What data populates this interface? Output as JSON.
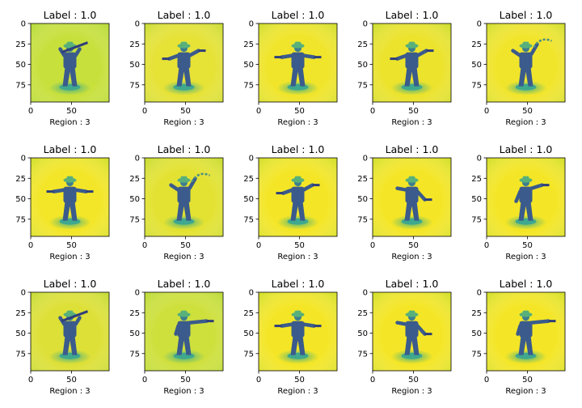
{
  "chart_data": {
    "type": "image_grid",
    "rows": 3,
    "cols": 5,
    "image_size": [
      96,
      96
    ],
    "xticks": [
      0,
      50
    ],
    "yticks": [
      0,
      25,
      50,
      75
    ],
    "panels": [
      {
        "title": "Label : 1.0",
        "xlabel": "Region : 3",
        "background": "#c8e03c",
        "pose": "rifle"
      },
      {
        "title": "Label : 1.0",
        "xlabel": "Region : 3",
        "background": "#e6e236",
        "pose": "two-guns"
      },
      {
        "title": "Label : 1.0",
        "xlabel": "Region : 3",
        "background": "#f0e52a",
        "pose": "hands-out"
      },
      {
        "title": "Label : 1.0",
        "xlabel": "Region : 3",
        "background": "#ece32c",
        "pose": "two-guns"
      },
      {
        "title": "Label : 1.0",
        "xlabel": "Region : 3",
        "background": "#f1e52c",
        "pose": "lasso"
      },
      {
        "title": "Label : 1.0",
        "xlabel": "Region : 3",
        "background": "#f3e628",
        "pose": "hands-out"
      },
      {
        "title": "Label : 1.0",
        "xlabel": "Region : 3",
        "background": "#e3e232",
        "pose": "lasso"
      },
      {
        "title": "Label : 1.0",
        "xlabel": "Region : 3",
        "background": "#f4e626",
        "pose": "two-guns"
      },
      {
        "title": "Label : 1.0",
        "xlabel": "Region : 3",
        "background": "#f4e626",
        "pose": "draw"
      },
      {
        "title": "Label : 1.0",
        "xlabel": "Region : 3",
        "background": "#f4e626",
        "pose": "lean"
      },
      {
        "title": "Label : 1.0",
        "xlabel": "Region : 3",
        "background": "#dde037",
        "pose": "rifle"
      },
      {
        "title": "Label : 1.0",
        "xlabel": "Region : 3",
        "background": "#cee03c",
        "pose": "point"
      },
      {
        "title": "Label : 1.0",
        "xlabel": "Region : 3",
        "background": "#f4e626",
        "pose": "hands-out"
      },
      {
        "title": "Label : 1.0",
        "xlabel": "Region : 3",
        "background": "#f4e626",
        "pose": "draw"
      },
      {
        "title": "Label : 1.0",
        "xlabel": "Region : 3",
        "background": "#f4e626",
        "pose": "point"
      }
    ],
    "figure_color": "#3b5b8c",
    "shadow_color": "#38a98b"
  }
}
